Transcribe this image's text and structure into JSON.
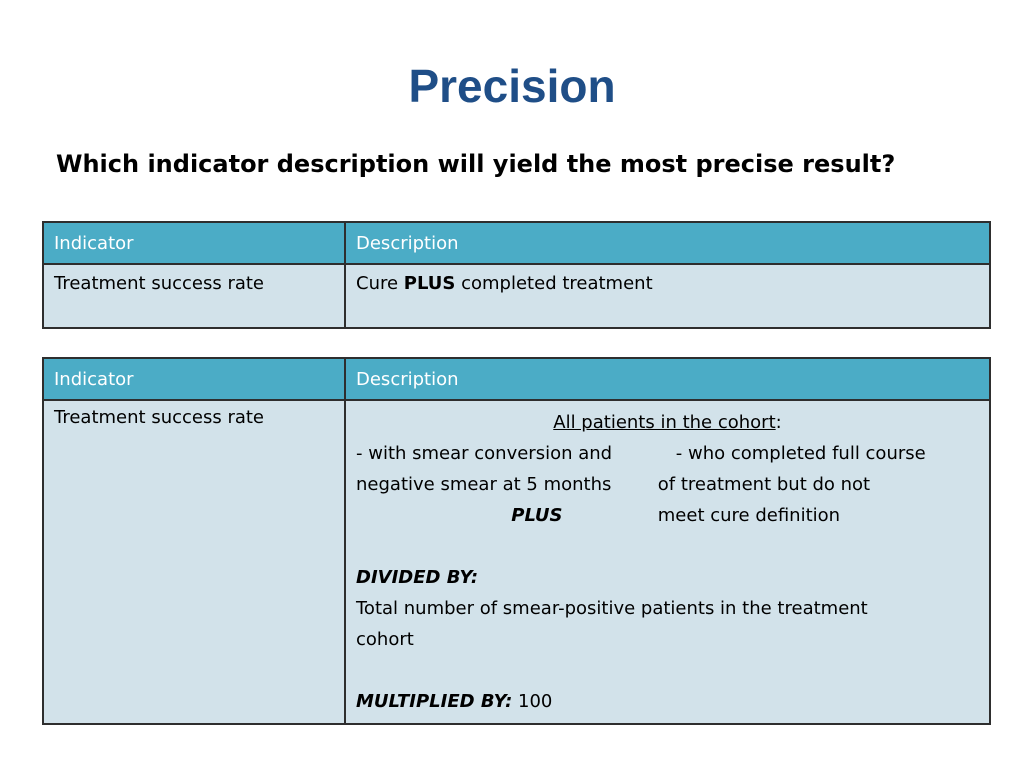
{
  "slide": {
    "title": "Precision",
    "question": "Which indicator description will yield the most precise result?"
  },
  "table1": {
    "headers": [
      "Indicator",
      "Description"
    ],
    "indicator": "Treatment success rate",
    "desc_pre": "Cure ",
    "desc_bold": "PLUS",
    "desc_post": " completed treatment"
  },
  "table2": {
    "headers": [
      "Indicator",
      "Description"
    ],
    "indicator": "Treatment success rate",
    "all_patients": "All patients in the cohort",
    "colon": ":",
    "left_col": [
      "- with smear conversion and",
      "negative smear at 5 months"
    ],
    "plus": "PLUS",
    "right_col": [
      "- who completed full course",
      "of treatment but do not",
      "meet cure definition"
    ],
    "divided_label": "DIVIDED BY:",
    "divided_text_1": "Total number of smear-positive patients in the treatment",
    "divided_text_2": "cohort",
    "multiplied_label": "MULTIPLIED BY:",
    "multiplied_value": " 100"
  },
  "colors": {
    "title": "#1f4e87",
    "header_bg": "#4bacc6",
    "cell_bg": "#d2e2ea"
  }
}
